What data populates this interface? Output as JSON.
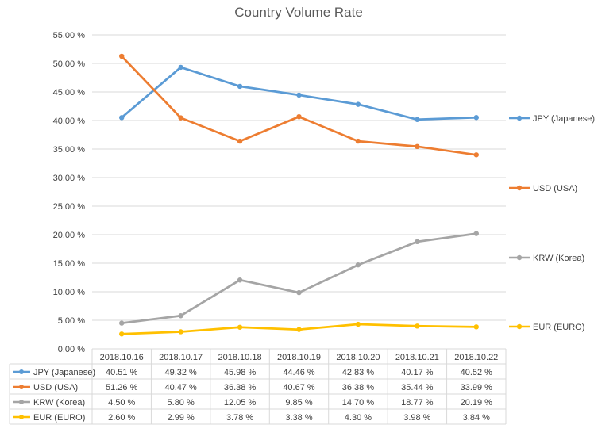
{
  "chart_data": {
    "type": "line",
    "title": "Country Volume Rate",
    "categories": [
      "2018.10.16",
      "2018.10.17",
      "2018.10.18",
      "2018.10.19",
      "2018.10.20",
      "2018.10.21",
      "2018.10.22"
    ],
    "ylim": [
      0,
      55
    ],
    "ytick_step": 5,
    "ytick_format": "0.00 %",
    "grid": true,
    "legend": "right",
    "series": [
      {
        "name": "JPY (Japanese)",
        "color": "#5B9BD5",
        "values": [
          40.51,
          49.32,
          45.98,
          44.46,
          42.83,
          40.17,
          40.52
        ],
        "labels": [
          "40.51 %",
          "49.32 %",
          "45.98 %",
          "44.46 %",
          "42.83 %",
          "40.17 %",
          "40.52 %"
        ]
      },
      {
        "name": "USD (USA)",
        "color": "#ED7D31",
        "values": [
          51.26,
          40.47,
          36.38,
          40.67,
          36.38,
          35.44,
          33.99
        ],
        "labels": [
          "51.26 %",
          "40.47 %",
          "36.38 %",
          "40.67 %",
          "36.38 %",
          "35.44 %",
          "33.99 %"
        ]
      },
      {
        "name": "KRW (Korea)",
        "color": "#A5A5A5",
        "values": [
          4.5,
          5.8,
          12.05,
          9.85,
          14.7,
          18.77,
          20.19
        ],
        "labels": [
          "4.50 %",
          "5.80 %",
          "12.05 %",
          "9.85 %",
          "14.70 %",
          "18.77 %",
          "20.19 %"
        ]
      },
      {
        "name": "EUR (EURO)",
        "color": "#FFC000",
        "values": [
          2.6,
          2.99,
          3.78,
          3.38,
          4.3,
          3.98,
          3.84
        ],
        "labels": [
          "2.60 %",
          "2.99 %",
          "3.78 %",
          "3.38 %",
          "4.30 %",
          "3.98 %",
          "3.84 %"
        ]
      }
    ]
  }
}
